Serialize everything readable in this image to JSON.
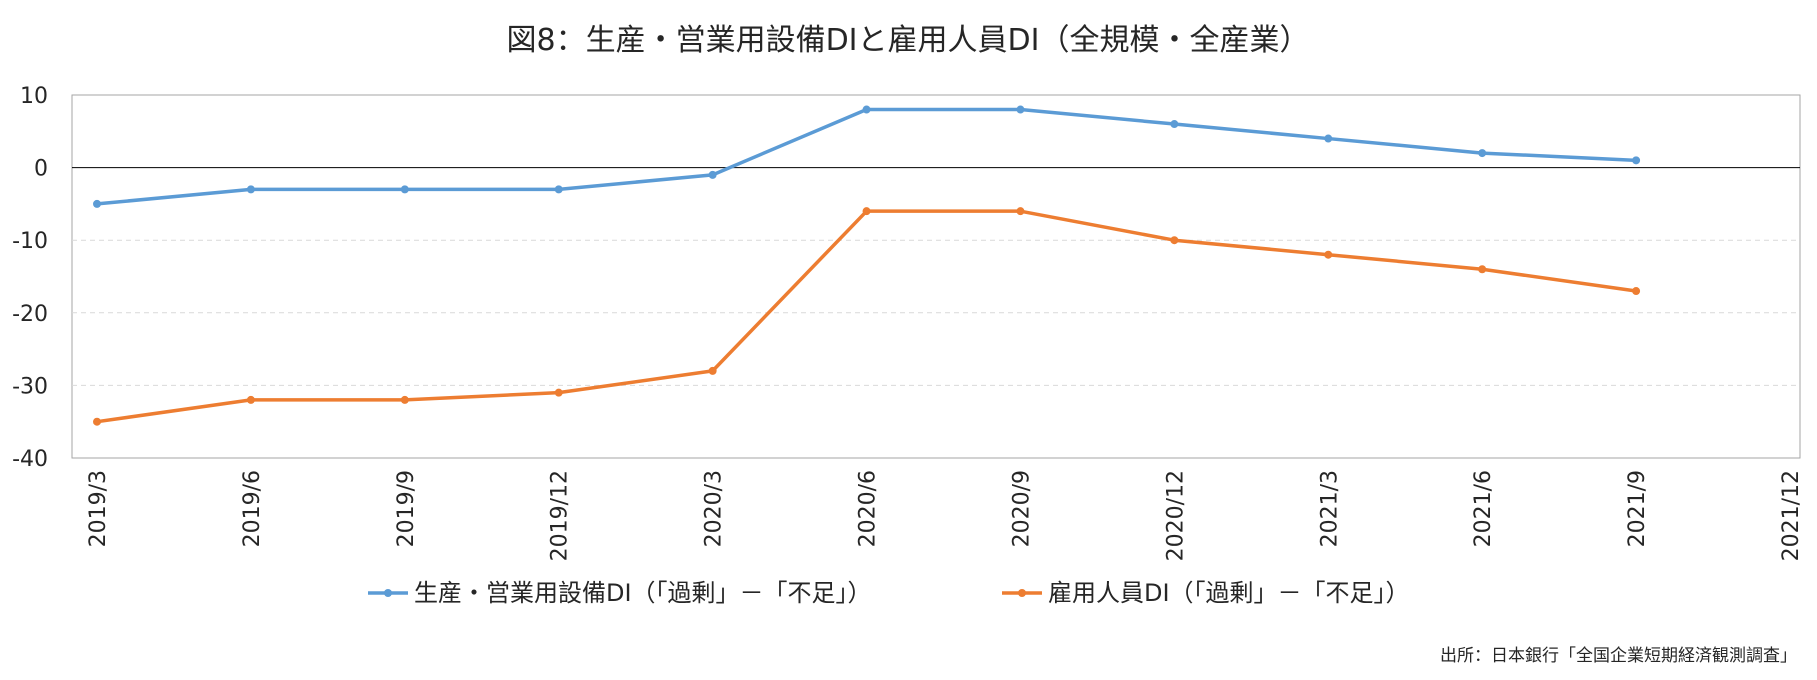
{
  "chart_data": {
    "type": "line",
    "title": "図8：生産・営業用設備DIと雇用人員DI（全規模・全産業）",
    "categories": [
      "2019/3",
      "2019/6",
      "2019/9",
      "2019/12",
      "2020/3",
      "2020/6",
      "2020/9",
      "2020/12",
      "2021/3",
      "2021/6",
      "2021/9",
      "2021/12"
    ],
    "series": [
      {
        "name": "生産・営業用設備DI（「過剰」－「不足」）",
        "color": "#5B9BD5",
        "values": [
          -5,
          -3,
          -3,
          -3,
          -1,
          8,
          8,
          6,
          4,
          2,
          1,
          null
        ]
      },
      {
        "name": "雇用人員DI（「過剰」－「不足」）",
        "color": "#ED7D31",
        "values": [
          -35,
          -32,
          -32,
          -31,
          -28,
          -6,
          -6,
          -10,
          -12,
          -14,
          -17,
          null
        ]
      }
    ],
    "ylim": [
      -40,
      10
    ],
    "yticks": [
      10,
      0,
      -10,
      -20,
      -30,
      -40
    ],
    "grid": "horizontal dashed",
    "legend": "bottom",
    "source": "出所：日本銀行「全国企業短期経済観測調査」"
  }
}
